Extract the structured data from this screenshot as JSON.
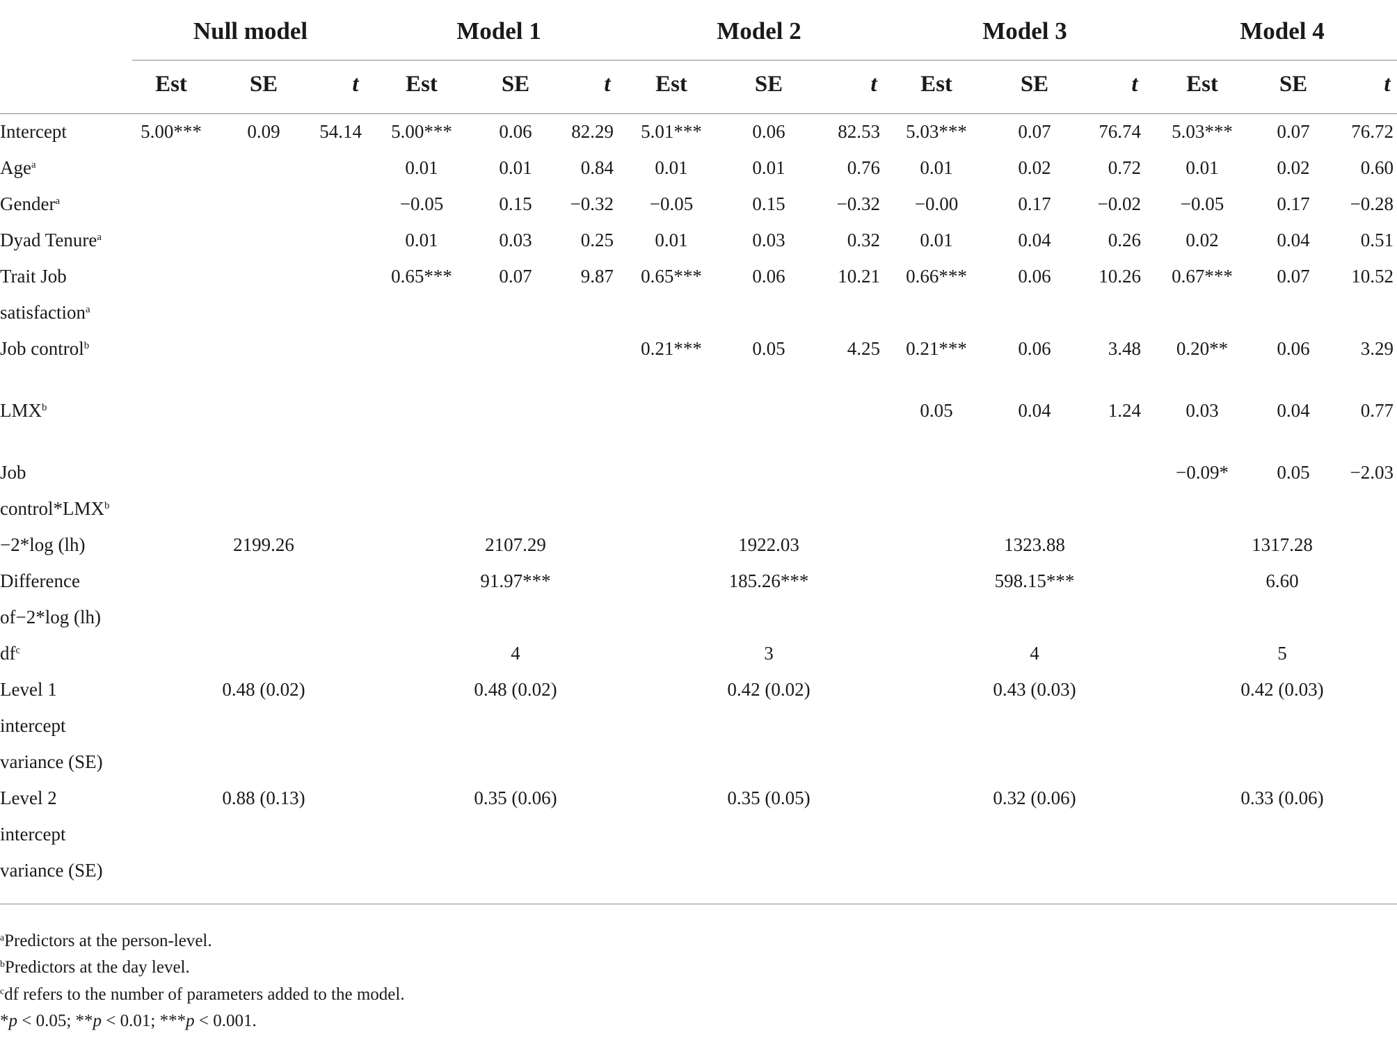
{
  "header": {
    "models": [
      "Null model",
      "Model 1",
      "Model 2",
      "Model 3",
      "Model 4"
    ],
    "stats": [
      "Est",
      "SE",
      "t"
    ]
  },
  "rows": [
    {
      "label": "Intercept",
      "sup": "",
      "cells": [
        "5.00***",
        "0.09",
        "54.14",
        "5.00***",
        "0.06",
        "82.29",
        "5.01***",
        "0.06",
        "82.53",
        "5.03***",
        "0.07",
        "76.74",
        "5.03***",
        "0.07",
        "76.72"
      ]
    },
    {
      "label": "Age",
      "sup": "a",
      "cells": [
        "",
        "",
        "",
        "0.01",
        "0.01",
        "0.84",
        "0.01",
        "0.01",
        "0.76",
        "0.01",
        "0.02",
        "0.72",
        "0.01",
        "0.02",
        "0.60"
      ]
    },
    {
      "label": "Gender",
      "sup": "a",
      "cells": [
        "",
        "",
        "",
        "−0.05",
        "0.15",
        "−0.32",
        "−0.05",
        "0.15",
        "−0.32",
        "−0.00",
        "0.17",
        "−0.02",
        "−0.05",
        "0.17",
        "−0.28"
      ]
    },
    {
      "label": "Dyad Tenure",
      "sup": "a",
      "cells": [
        "",
        "",
        "",
        "0.01",
        "0.03",
        "0.25",
        "0.01",
        "0.03",
        "0.32",
        "0.01",
        "0.04",
        "0.26",
        "0.02",
        "0.04",
        "0.51"
      ]
    },
    {
      "label": "Trait Job",
      "label2": "satisfaction",
      "sup": "a",
      "cells": [
        "",
        "",
        "",
        "0.65***",
        "0.07",
        "9.87",
        "0.65***",
        "0.06",
        "10.21",
        "0.66***",
        "0.06",
        "10.26",
        "0.67***",
        "0.07",
        "10.52"
      ]
    },
    {
      "label": "Job control",
      "sup": "b",
      "cells": [
        "",
        "",
        "",
        "",
        "",
        "",
        "0.21***",
        "0.05",
        "4.25",
        "0.21***",
        "0.06",
        "3.48",
        "0.20**",
        "0.06",
        "3.29"
      ]
    },
    {
      "label": "LMX",
      "sup": "b",
      "cells": [
        "",
        "",
        "",
        "",
        "",
        "",
        "",
        "",
        "",
        "0.05",
        "0.04",
        "1.24",
        "0.03",
        "0.04",
        "0.77"
      ]
    },
    {
      "label": "Job",
      "label2": "control*LMX",
      "sup": "b",
      "cells": [
        "",
        "",
        "",
        "",
        "",
        "",
        "",
        "",
        "",
        "",
        "",
        "",
        "−0.09*",
        "0.05",
        "−2.03"
      ]
    }
  ],
  "fit_rows": [
    {
      "lines": [
        "−2*log (lh)"
      ],
      "values": [
        "2199.26",
        "2107.29",
        "1922.03",
        "1323.88",
        "1317.28"
      ]
    },
    {
      "lines": [
        "Difference",
        "of−2*log (lh)"
      ],
      "values": [
        "",
        "91.97***",
        "185.26***",
        "598.15***",
        "6.60"
      ]
    },
    {
      "lines": [
        "df"
      ],
      "sup": "c",
      "values": [
        "",
        "4",
        "3",
        "4",
        "5"
      ]
    },
    {
      "lines": [
        "Level 1",
        "intercept",
        "variance (SE)"
      ],
      "values": [
        "0.48 (0.02)",
        "0.48 (0.02)",
        "0.42 (0.02)",
        "0.43 (0.03)",
        "0.42 (0.03)"
      ]
    },
    {
      "lines": [
        "Level 2",
        "intercept",
        "variance (SE)"
      ],
      "values": [
        "0.88 (0.13)",
        "0.35 (0.06)",
        "0.35 (0.05)",
        "0.32 (0.06)",
        "0.33 (0.06)"
      ]
    }
  ],
  "footnotes": {
    "a": {
      "mark": "a",
      "text": "Predictors at the person-level."
    },
    "b": {
      "mark": "b",
      "text": "Predictors at the day level."
    },
    "c": {
      "mark": "c",
      "text": "df refers to the number of parameters added to the model."
    },
    "p": {
      "p1": "p",
      "t1": " < 0.05; **",
      "p2": "p",
      "t2": " < 0.01; ***",
      "p3": "p",
      "t3": " < 0.001.",
      "lead": "*"
    }
  }
}
